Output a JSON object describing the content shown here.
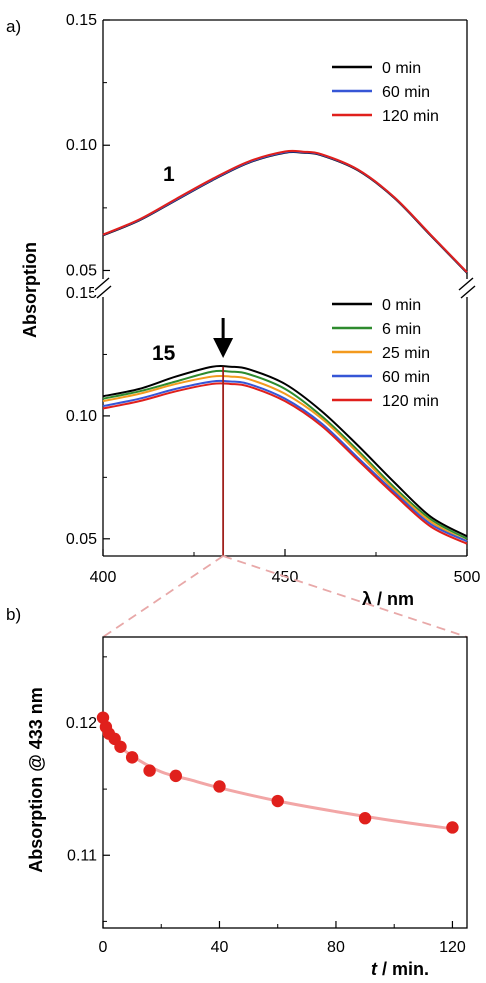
{
  "colors": {
    "black": "#000000",
    "green": "#2e8b2e",
    "orange": "#f39a1e",
    "blue": "#3656d6",
    "red": "#e0201c",
    "marker_line": "#a0201c",
    "fit_line": "#f2a6a6",
    "zoom_dash": "#e8a8a8"
  },
  "chart_data": [
    {
      "id": "a_top",
      "type": "line",
      "panel_label": "a)",
      "annotation": "1",
      "xlim": [
        400,
        500
      ],
      "ylim": [
        0.045,
        0.15
      ],
      "yticks": [
        0.05,
        0.1,
        0.15
      ],
      "ytick_labels": [
        "0.05",
        "0.10",
        "0.15"
      ],
      "x": [
        400,
        410,
        420,
        430,
        440,
        450,
        455,
        460,
        470,
        480,
        490,
        500
      ],
      "series": [
        {
          "name": "0 min",
          "color": "#000000",
          "values": [
            0.064,
            0.07,
            0.078,
            0.086,
            0.093,
            0.097,
            0.097,
            0.096,
            0.09,
            0.079,
            0.064,
            0.049
          ]
        },
        {
          "name": "60 min",
          "color": "#3656d6",
          "values": [
            0.0642,
            0.0702,
            0.0782,
            0.0862,
            0.0932,
            0.0972,
            0.0972,
            0.0962,
            0.0902,
            0.0792,
            0.0642,
            0.0492
          ]
        },
        {
          "name": "120 min",
          "color": "#e0201c",
          "values": [
            0.0643,
            0.0704,
            0.0785,
            0.0865,
            0.0935,
            0.0975,
            0.0974,
            0.0964,
            0.0903,
            0.0793,
            0.0643,
            0.0493
          ]
        }
      ]
    },
    {
      "id": "a_bottom",
      "type": "line",
      "annotation": "15",
      "xlabel": "λ / nm",
      "xlim": [
        400,
        500
      ],
      "xticks": [
        400,
        450,
        500
      ],
      "xtick_labels": [
        "400",
        "450",
        "500"
      ],
      "ylim": [
        0.043,
        0.15
      ],
      "yticks": [
        0.05,
        0.1,
        0.15
      ],
      "ytick_labels": [
        "0.05",
        "0.10",
        "0.15"
      ],
      "marker_x": 433,
      "x": [
        400,
        410,
        420,
        430,
        435,
        440,
        450,
        460,
        470,
        480,
        490,
        500
      ],
      "series": [
        {
          "name": "0 min",
          "color": "#000000",
          "values": [
            0.108,
            0.111,
            0.116,
            0.12,
            0.12,
            0.119,
            0.113,
            0.102,
            0.088,
            0.073,
            0.059,
            0.051
          ]
        },
        {
          "name": "6 min",
          "color": "#2e8b2e",
          "values": [
            0.107,
            0.11,
            0.114,
            0.118,
            0.118,
            0.117,
            0.111,
            0.1,
            0.086,
            0.071,
            0.058,
            0.05
          ]
        },
        {
          "name": "25 min",
          "color": "#f39a1e",
          "values": [
            0.106,
            0.109,
            0.113,
            0.116,
            0.116,
            0.115,
            0.109,
            0.099,
            0.085,
            0.07,
            0.057,
            0.049
          ]
        },
        {
          "name": "60 min",
          "color": "#3656d6",
          "values": [
            0.104,
            0.107,
            0.111,
            0.114,
            0.114,
            0.113,
            0.107,
            0.097,
            0.083,
            0.069,
            0.056,
            0.049
          ]
        },
        {
          "name": "120 min",
          "color": "#e0201c",
          "values": [
            0.103,
            0.106,
            0.11,
            0.113,
            0.113,
            0.112,
            0.106,
            0.096,
            0.082,
            0.068,
            0.055,
            0.048
          ]
        }
      ]
    },
    {
      "id": "b",
      "type": "scatter",
      "panel_label": "b)",
      "xlabel_italic": "t",
      "xlabel_rest": " / min.",
      "ylabel": "Absorption @ 433 nm",
      "xlim": [
        0,
        125
      ],
      "xticks": [
        0,
        40,
        80,
        120
      ],
      "xtick_labels": [
        "0",
        "40",
        "80",
        "120"
      ],
      "ylim": [
        0.1045,
        0.1265
      ],
      "yticks": [
        0.11,
        0.12
      ],
      "ytick_labels": [
        "0.11",
        "0.12"
      ],
      "points": {
        "x": [
          0,
          1,
          2,
          4,
          6,
          10,
          16,
          25,
          40,
          60,
          90,
          120
        ],
        "y": [
          0.1204,
          0.1197,
          0.1192,
          0.1188,
          0.1182,
          0.1174,
          0.1164,
          0.116,
          0.1152,
          0.1141,
          0.1128,
          0.1121
        ]
      },
      "fit": {
        "x": [
          0,
          2,
          5,
          10,
          20,
          30,
          40,
          60,
          80,
          100,
          120
        ],
        "y": [
          0.12,
          0.1192,
          0.1184,
          0.1175,
          0.1163,
          0.1157,
          0.1151,
          0.1141,
          0.1133,
          0.1126,
          0.112
        ]
      }
    }
  ],
  "shared": {
    "ylabel_a": "Absorption"
  }
}
